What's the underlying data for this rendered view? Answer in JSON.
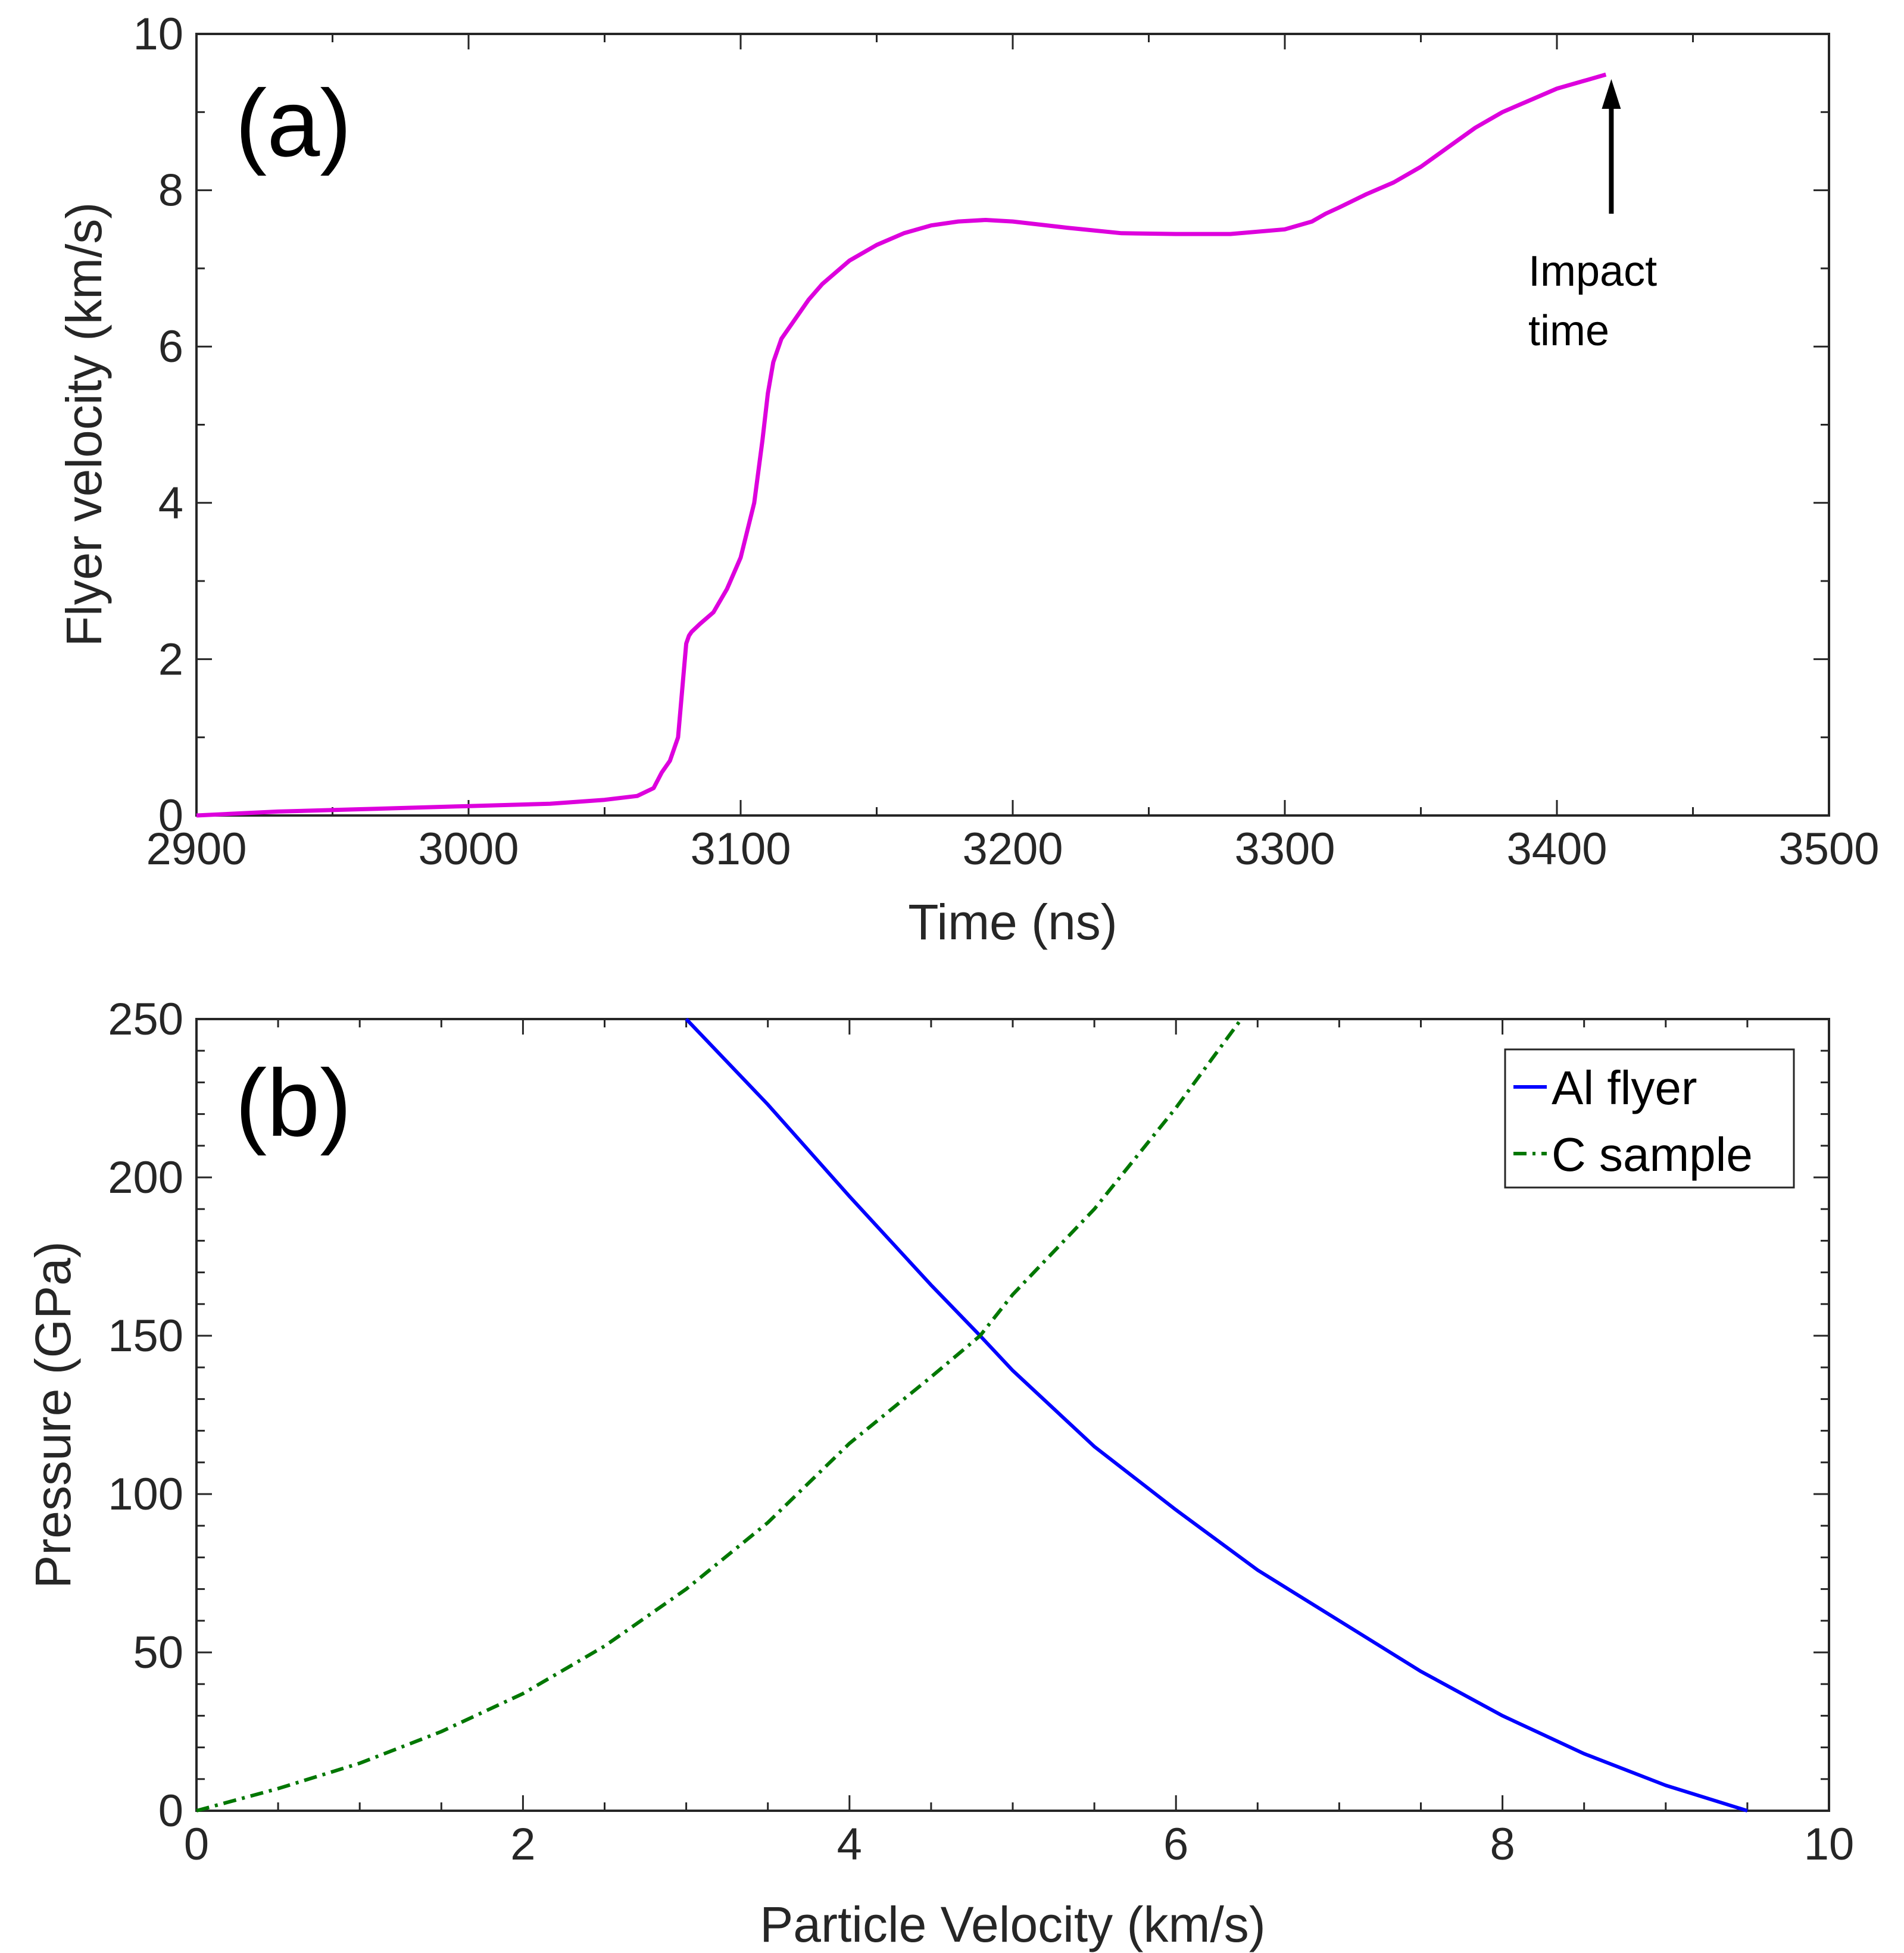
{
  "chart_data": [
    {
      "type": "line",
      "panel_label": "(a)",
      "xlabel": "Time (ns)",
      "ylabel": "Flyer velocity (km/s)",
      "xlim": [
        2900,
        3500
      ],
      "ylim": [
        0,
        10
      ],
      "xticks": [
        2900,
        3000,
        3100,
        3200,
        3300,
        3400,
        3500
      ],
      "yticks": [
        0,
        2,
        4,
        6,
        8,
        10
      ],
      "grid": false,
      "series": [
        {
          "name": "Flyer velocity",
          "color": "#DD00DD",
          "style": "solid",
          "x": [
            2900,
            2930,
            2960,
            3000,
            3030,
            3050,
            3062,
            3068,
            3071,
            3074,
            3077,
            3079,
            3080,
            3081,
            3082,
            3085,
            3090,
            3095,
            3100,
            3105,
            3108,
            3110,
            3112,
            3115,
            3120,
            3125,
            3130,
            3140,
            3150,
            3160,
            3170,
            3180,
            3190,
            3200,
            3220,
            3240,
            3260,
            3280,
            3300,
            3310,
            3315,
            3320,
            3330,
            3340,
            3350,
            3360,
            3370,
            3380,
            3390,
            3400,
            3410,
            3418
          ],
          "y": [
            0.0,
            0.05,
            0.08,
            0.12,
            0.15,
            0.2,
            0.25,
            0.35,
            0.55,
            0.7,
            1.0,
            1.8,
            2.2,
            2.3,
            2.35,
            2.45,
            2.6,
            2.9,
            3.3,
            4.0,
            4.8,
            5.4,
            5.8,
            6.1,
            6.35,
            6.6,
            6.8,
            7.1,
            7.3,
            7.45,
            7.55,
            7.6,
            7.62,
            7.6,
            7.52,
            7.45,
            7.44,
            7.44,
            7.5,
            7.6,
            7.7,
            7.78,
            7.95,
            8.1,
            8.3,
            8.55,
            8.8,
            9.0,
            9.15,
            9.3,
            9.4,
            9.48
          ]
        }
      ],
      "annotation": {
        "text_line1": "Impact",
        "text_line2": "time",
        "arrow_x": 3420,
        "arrow_y_from": 7.7,
        "arrow_y_to": 9.3
      }
    },
    {
      "type": "line",
      "panel_label": "(b)",
      "xlabel": "Particle Velocity (km/s)",
      "ylabel": "Pressure (GPa)",
      "xlim": [
        0,
        10
      ],
      "ylim": [
        0,
        250
      ],
      "xticks": [
        0,
        2,
        4,
        6,
        8,
        10
      ],
      "yticks": [
        0,
        50,
        100,
        150,
        200,
        250
      ],
      "grid": false,
      "legend_position": "top-right",
      "series": [
        {
          "name": "Al flyer",
          "color": "#0000FF",
          "style": "solid",
          "x": [
            3.0,
            3.5,
            4.0,
            4.5,
            4.8,
            5.0,
            5.5,
            6.0,
            6.5,
            7.0,
            7.5,
            8.0,
            8.5,
            9.0,
            9.5
          ],
          "y": [
            250,
            223,
            194,
            166,
            150,
            139,
            115,
            95,
            76,
            60,
            44,
            30,
            18,
            8,
            0
          ]
        },
        {
          "name": "C sample",
          "color": "#007700",
          "style": "dash-dot",
          "x": [
            0,
            0.5,
            1.0,
            1.5,
            2.0,
            2.5,
            3.0,
            3.5,
            4.0,
            4.5,
            4.8,
            5.0,
            5.5,
            6.0,
            6.4
          ],
          "y": [
            0,
            7,
            15,
            25,
            37,
            52,
            70,
            91,
            116,
            137,
            150,
            163,
            190,
            222,
            250
          ]
        }
      ]
    }
  ]
}
